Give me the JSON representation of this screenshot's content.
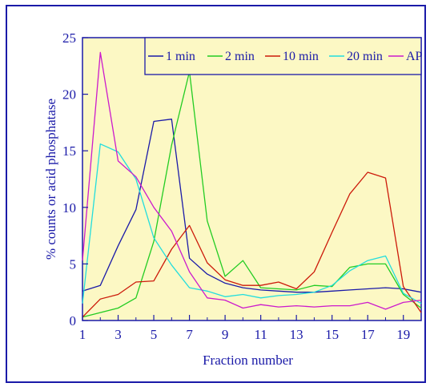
{
  "chart_data": {
    "type": "line",
    "title": "",
    "xlabel": "Fraction number",
    "ylabel": "% counts or acid phosphatase",
    "xlim": [
      1,
      20
    ],
    "ylim": [
      0,
      25
    ],
    "xticks": [
      "1",
      "3",
      "5",
      "7",
      "9",
      "11",
      "13",
      "15",
      "17",
      "19"
    ],
    "yticks": [
      "0",
      "5",
      "10",
      "15",
      "20",
      "25"
    ],
    "grid": false,
    "legend_position": "top-right",
    "colors": {
      "plot_bg": "#fcf8c4",
      "axis": "#1a1aa8",
      "frame": "#1a1aa8"
    },
    "x": [
      1,
      2,
      3,
      4,
      5,
      6,
      7,
      8,
      9,
      10,
      11,
      12,
      13,
      14,
      15,
      16,
      17,
      18,
      19,
      20
    ],
    "series": [
      {
        "name": "1 min",
        "color": "#1a1aa8",
        "values": [
          2.6,
          3.1,
          6.6,
          9.8,
          17.6,
          17.8,
          5.5,
          4.1,
          3.3,
          2.9,
          2.7,
          2.6,
          2.5,
          2.5,
          2.6,
          2.7,
          2.8,
          2.9,
          2.8,
          2.5
        ]
      },
      {
        "name": "2 min",
        "color": "#22cc22",
        "values": [
          0.3,
          0.7,
          1.1,
          2.0,
          7.0,
          15.5,
          22.0,
          8.8,
          3.9,
          5.3,
          2.9,
          2.8,
          2.7,
          3.1,
          3.0,
          4.7,
          5.0,
          5.0,
          2.3,
          1.1
        ]
      },
      {
        "name": "10 min",
        "color": "#cc1a0a",
        "values": [
          0.3,
          1.9,
          2.3,
          3.4,
          3.5,
          6.3,
          8.4,
          5.1,
          3.6,
          3.1,
          3.1,
          3.4,
          2.8,
          4.3,
          7.8,
          11.2,
          13.1,
          12.6,
          3.0,
          0.7
        ]
      },
      {
        "name": "20 min",
        "color": "#22dddd",
        "values": [
          1.5,
          15.6,
          14.9,
          12.5,
          7.3,
          4.9,
          2.9,
          2.6,
          2.1,
          2.3,
          2.0,
          2.2,
          2.3,
          2.5,
          3.1,
          4.4,
          5.3,
          5.7,
          2.4,
          1.5
        ]
      },
      {
        "name": "AP",
        "color": "#cc1acc",
        "values": [
          5.3,
          23.7,
          14.1,
          12.7,
          10.0,
          7.9,
          4.3,
          2.0,
          1.8,
          1.1,
          1.4,
          1.2,
          1.3,
          1.2,
          1.3,
          1.3,
          1.6,
          1.0,
          1.6,
          1.8
        ]
      }
    ]
  }
}
